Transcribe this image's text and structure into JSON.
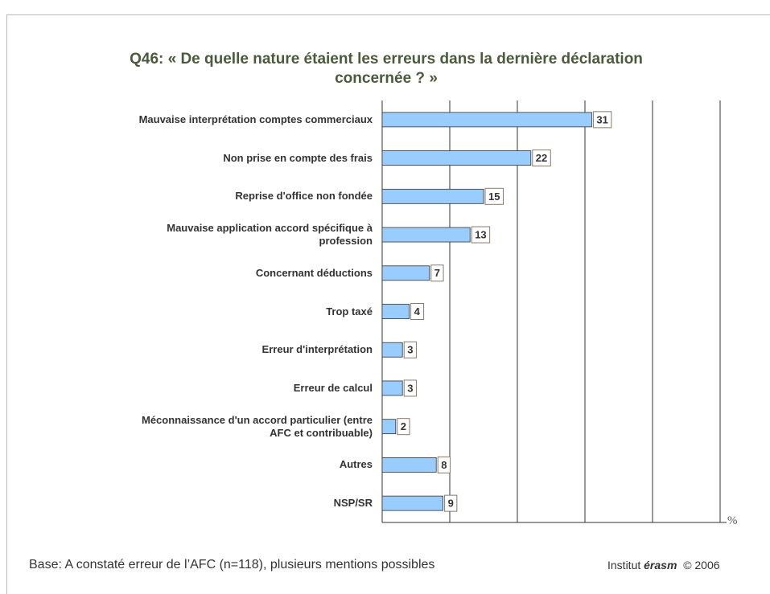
{
  "chart_data": {
    "type": "bar",
    "orientation": "horizontal",
    "title": "Q46: « De quelle nature étaient les erreurs dans la dernière déclaration\nconcernée ? »",
    "categories": [
      "Mauvaise interprétation comptes commerciaux",
      "Non prise en compte des frais",
      "Reprise d'office non fondée",
      "Mauvaise application accord spécifique à\nprofession",
      "Concernant déductions",
      "Trop taxé",
      "Erreur d'interprétation",
      "Erreur de calcul",
      "Méconnaissance d'un accord particulier (entre\nAFC et contribuable)",
      "Autres",
      "NSP/SR"
    ],
    "values": [
      31,
      22,
      15,
      13,
      7,
      4,
      3,
      3,
      2,
      8,
      9
    ],
    "color": "#99ccff",
    "xlim": [
      0,
      50
    ],
    "xticks": [
      0,
      10,
      20,
      30,
      40,
      50
    ],
    "grid": true,
    "x_unit": "%",
    "footnote": "Base: A constaté erreur de l’AFC (n=118), plusieurs mentions possibles",
    "source": {
      "prefix": "Institut",
      "brand": "érasm",
      "suffix": "© 2006"
    }
  }
}
